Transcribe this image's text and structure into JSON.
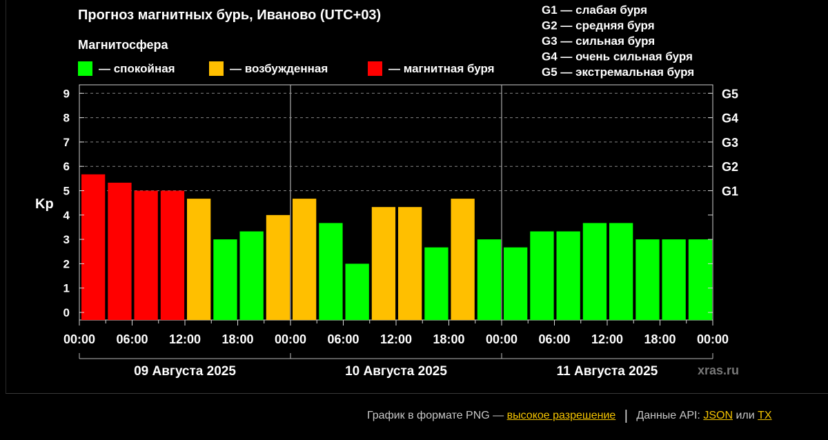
{
  "title": "Прогноз магнитных бурь, Иваново (UTC+03)",
  "legend_heading": "Магнитосфера",
  "legend": [
    {
      "label": "— спокойная",
      "color": "#00ff00"
    },
    {
      "label": "— возбужденная",
      "color": "#ffbf00"
    },
    {
      "label": "— магнитная буря",
      "color": "#ff0000"
    }
  ],
  "g_scale": [
    "G1 — слабая буря",
    "G2 — средняя буря",
    "G3 — сильная буря",
    "G4 — очень сильная буря",
    "G5 — экстремальная буря"
  ],
  "watermark": "xras.ru",
  "footer": {
    "text1": "График в формате PNG —",
    "link_hires": "высокое разрешение",
    "separator": "|",
    "text2": "Данные API:",
    "link_json": "JSON",
    "text3": "или",
    "link_txt": "TX"
  },
  "colors": {
    "calm": "#00ff00",
    "excited": "#ffbf00",
    "storm": "#ff0000"
  },
  "chart_data": {
    "type": "bar",
    "ylabel": "Kp",
    "ylim": [
      0,
      9
    ],
    "yticks": [
      0,
      1,
      2,
      3,
      4,
      5,
      6,
      7,
      8,
      9
    ],
    "right_ticks": [
      {
        "label": "G1",
        "kp": 5
      },
      {
        "label": "G2",
        "kp": 6
      },
      {
        "label": "G3",
        "kp": 7
      },
      {
        "label": "G4",
        "kp": 8
      },
      {
        "label": "G5",
        "kp": 9
      }
    ],
    "xtick_labels": [
      "00:00",
      "06:00",
      "12:00",
      "18:00",
      "00:00",
      "06:00",
      "12:00",
      "18:00",
      "00:00",
      "06:00",
      "12:00",
      "18:00",
      "00:00"
    ],
    "days": [
      "09 Августа 2025",
      "10 Августа 2025",
      "11 Августа 2025"
    ],
    "bar_hours": 3,
    "values": [
      5.67,
      5.33,
      5.0,
      5.0,
      4.67,
      3.0,
      3.33,
      4.0,
      4.67,
      3.67,
      2.0,
      4.33,
      4.33,
      2.67,
      4.67,
      3.0,
      2.67,
      3.33,
      3.33,
      3.67,
      3.67,
      3.0,
      3.0,
      3.0
    ],
    "bar_status": [
      "storm",
      "storm",
      "storm",
      "storm",
      "excited",
      "calm",
      "calm",
      "excited",
      "excited",
      "calm",
      "calm",
      "excited",
      "excited",
      "calm",
      "excited",
      "calm",
      "calm",
      "calm",
      "calm",
      "calm",
      "calm",
      "calm",
      "calm",
      "calm"
    ],
    "grid": "dashed horizontal at G-levels",
    "legend_position": "top"
  }
}
